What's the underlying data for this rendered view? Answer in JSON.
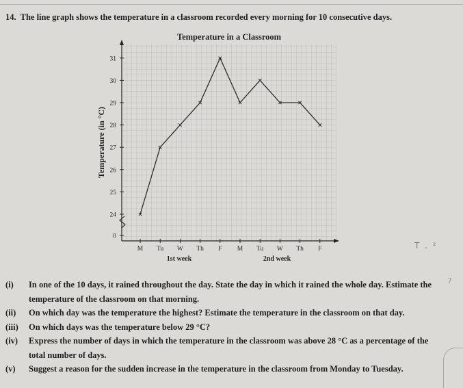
{
  "question": {
    "number": "14.",
    "text": "The line graph shows the temperature in a classroom recorded every morning for 10 consecutive days."
  },
  "chart_data": {
    "type": "line",
    "title": "Temperature in a Classroom",
    "ylabel": "Temperature (in °C)",
    "xlabel": "",
    "categories": [
      "M",
      "Tu",
      "W",
      "Th",
      "F",
      "M",
      "Tu",
      "W",
      "Th",
      "F"
    ],
    "week_labels": [
      "1st week",
      "2nd week"
    ],
    "series": [
      {
        "values": [
          24,
          27,
          28,
          29,
          31,
          29,
          30,
          29,
          29,
          28
        ]
      }
    ],
    "y_ticks": [
      "0",
      "24",
      "25",
      "26",
      "27",
      "28",
      "29",
      "30",
      "31"
    ],
    "ylim": [
      24,
      31
    ],
    "axis_break": true,
    "grid": true,
    "colors": {
      "line": "#2b2b2b",
      "grid": "#aaa8a4",
      "axis": "#222222"
    }
  },
  "parts": [
    {
      "label": "(i)",
      "text": "In one of the 10 days, it rained throughout the day. State the day in which it rained the whole day. Estimate the temperature of the classroom on that morning."
    },
    {
      "label": "(ii)",
      "text": "On which day was the temperature the highest? Estimate the temperature in the classroom on that day."
    },
    {
      "label": "(iii)",
      "text": "On which days was the temperature below 29 °C?"
    },
    {
      "label": "(iv)",
      "text": "Express the number of days in which the temperature in the classroom was above 28 °C as a percentage of the total number of days."
    },
    {
      "label": "(v)",
      "text": "Suggest a reason for the sudden increase in the temperature in the classroom from Monday to Tuesday."
    }
  ],
  "margin_notes": [
    "T . ²",
    "7"
  ]
}
